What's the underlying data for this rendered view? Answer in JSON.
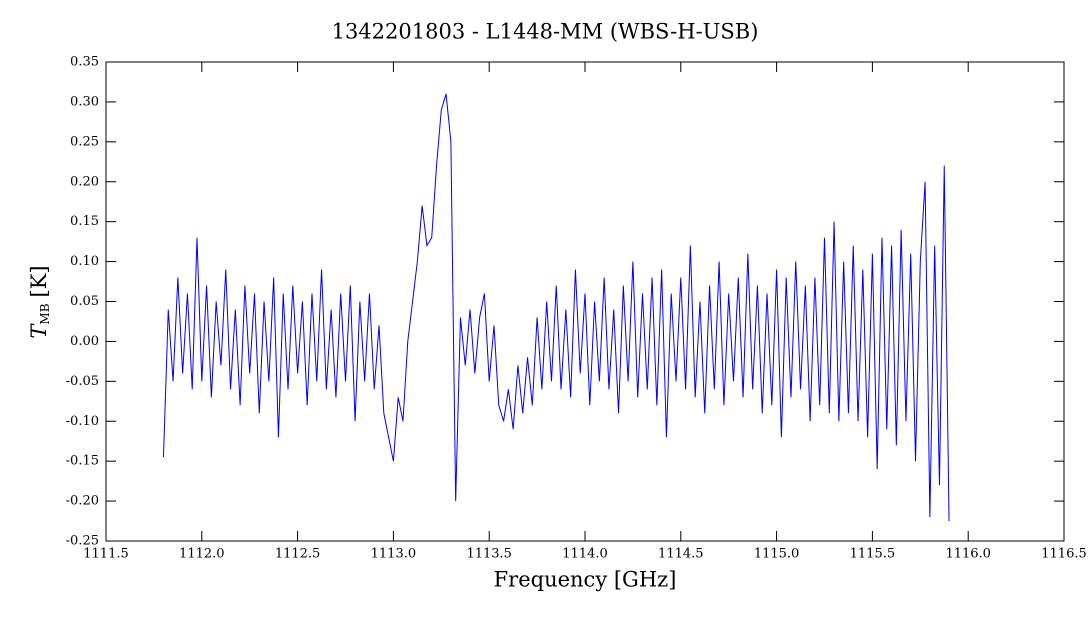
{
  "chart_data": {
    "type": "line",
    "title": "1342201803 - L1448-MM (WBS-H-USB)",
    "xlabel": "Frequency [GHz]",
    "ylabel": [
      "T",
      "MB",
      "[K]"
    ],
    "color": "#0000ff",
    "xlim": [
      1111.5,
      1116.5
    ],
    "ylim": [
      -0.25,
      0.35
    ],
    "xticks": [
      1111.5,
      {
        "value": 1112,
        "label": "1112.0"
      },
      1112.5,
      {
        "value": 1113,
        "label": "1113.0"
      },
      1113.5,
      {
        "value": 1114,
        "label": "1114.0"
      },
      1114.5,
      {
        "value": 1115,
        "label": "1115.0"
      },
      1115.5,
      {
        "value": 1116,
        "label": "1116.0"
      },
      1116.5
    ],
    "yticks": [
      0.35,
      {
        "value": 0.3,
        "label": "0.30"
      },
      0.25,
      {
        "value": 0.2,
        "label": "0.20"
      },
      0.15,
      {
        "value": 0.1,
        "label": "0.10"
      },
      0.05,
      {
        "value": 0,
        "label": "0.00"
      },
      -0.05,
      {
        "value": -0.1,
        "label": "-0.10"
      },
      -0.15,
      {
        "value": -0.2,
        "label": "-0.20"
      },
      -0.25
    ],
    "x": [
      1111.8,
      1111.825,
      1111.85,
      1111.875,
      1111.9,
      1111.925,
      1111.95,
      1111.975,
      1112,
      1112.025,
      1112.05,
      1112.075,
      1112.1,
      1112.125,
      1112.15,
      1112.175,
      1112.2,
      1112.225,
      1112.25,
      1112.275,
      1112.3,
      1112.325,
      1112.35,
      1112.375,
      1112.4,
      1112.425,
      1112.45,
      1112.475,
      1112.5,
      1112.525,
      1112.55,
      1112.575,
      1112.6,
      1112.625,
      1112.65,
      1112.675,
      1112.7,
      1112.725,
      1112.75,
      1112.775,
      1112.8,
      1112.825,
      1112.85,
      1112.875,
      1112.9,
      1112.925,
      1112.95,
      1112.975,
      1113,
      1113.025,
      1113.05,
      1113.075,
      1113.1,
      1113.125,
      1113.15,
      1113.175,
      1113.2,
      1113.225,
      1113.25,
      1113.275,
      1113.3,
      1113.325,
      1113.35,
      1113.375,
      1113.4,
      1113.425,
      1113.45,
      1113.475,
      1113.5,
      1113.525,
      1113.55,
      1113.575,
      1113.6,
      1113.625,
      1113.65,
      1113.675,
      1113.7,
      1113.725,
      1113.75,
      1113.775,
      1113.8,
      1113.825,
      1113.85,
      1113.875,
      1113.9,
      1113.925,
      1113.95,
      1113.975,
      1114,
      1114.025,
      1114.05,
      1114.075,
      1114.1,
      1114.125,
      1114.15,
      1114.175,
      1114.2,
      1114.225,
      1114.25,
      1114.275,
      1114.3,
      1114.325,
      1114.35,
      1114.375,
      1114.4,
      1114.425,
      1114.45,
      1114.475,
      1114.5,
      1114.525,
      1114.55,
      1114.575,
      1114.6,
      1114.625,
      1114.65,
      1114.675,
      1114.7,
      1114.725,
      1114.75,
      1114.775,
      1114.8,
      1114.825,
      1114.85,
      1114.875,
      1114.9,
      1114.925,
      1114.95,
      1114.975,
      1115,
      1115.025,
      1115.05,
      1115.075,
      1115.1,
      1115.125,
      1115.15,
      1115.175,
      1115.2,
      1115.225,
      1115.25,
      1115.275,
      1115.3,
      1115.325,
      1115.35,
      1115.375,
      1115.4,
      1115.425,
      1115.45,
      1115.475,
      1115.5,
      1115.525,
      1115.55,
      1115.575,
      1115.6,
      1115.625,
      1115.65,
      1115.675,
      1115.7,
      1115.725,
      1115.75,
      1115.775,
      1115.8,
      1115.825,
      1115.85,
      1115.875,
      1115.9
    ],
    "values": [
      -0.145,
      0.04,
      -0.05,
      0.08,
      -0.04,
      0.06,
      -0.06,
      0.13,
      -0.05,
      0.07,
      -0.07,
      0.05,
      -0.03,
      0.09,
      -0.06,
      0.04,
      -0.08,
      0.07,
      -0.04,
      0.06,
      -0.09,
      0.05,
      -0.05,
      0.08,
      -0.12,
      0.06,
      -0.06,
      0.07,
      -0.04,
      0.05,
      -0.08,
      0.06,
      -0.05,
      0.09,
      -0.06,
      0.04,
      -0.07,
      0.06,
      -0.05,
      0.07,
      -0.1,
      0.05,
      -0.05,
      0.06,
      -0.06,
      0.02,
      -0.09,
      -0.12,
      -0.15,
      -0.07,
      -0.1,
      0.0,
      0.05,
      0.1,
      0.17,
      0.12,
      0.13,
      0.22,
      0.29,
      0.31,
      0.25,
      -0.2,
      0.03,
      -0.03,
      0.04,
      -0.04,
      0.03,
      0.06,
      -0.05,
      0.02,
      -0.08,
      -0.1,
      -0.06,
      -0.11,
      -0.03,
      -0.09,
      -0.02,
      -0.08,
      0.03,
      -0.06,
      0.05,
      -0.05,
      0.07,
      -0.06,
      0.04,
      -0.07,
      0.09,
      -0.04,
      0.06,
      -0.08,
      0.05,
      -0.05,
      0.08,
      -0.06,
      0.04,
      -0.09,
      0.07,
      -0.05,
      0.1,
      -0.07,
      0.06,
      -0.06,
      0.08,
      -0.08,
      0.09,
      -0.12,
      0.06,
      -0.05,
      0.08,
      -0.06,
      0.12,
      -0.07,
      0.05,
      -0.09,
      0.07,
      -0.06,
      0.1,
      -0.08,
      0.06,
      -0.05,
      0.08,
      -0.07,
      0.11,
      -0.06,
      0.07,
      -0.09,
      0.06,
      -0.08,
      0.09,
      -0.12,
      0.08,
      -0.07,
      0.1,
      -0.06,
      0.07,
      -0.1,
      0.08,
      -0.08,
      0.13,
      -0.09,
      0.15,
      -0.1,
      0.1,
      -0.09,
      0.12,
      -0.1,
      0.09,
      -0.12,
      0.11,
      -0.16,
      0.13,
      -0.11,
      0.12,
      -0.13,
      0.14,
      -0.1,
      0.11,
      -0.15,
      0.1,
      0.2,
      -0.22,
      0.12,
      -0.18,
      0.22,
      -0.225
    ]
  }
}
